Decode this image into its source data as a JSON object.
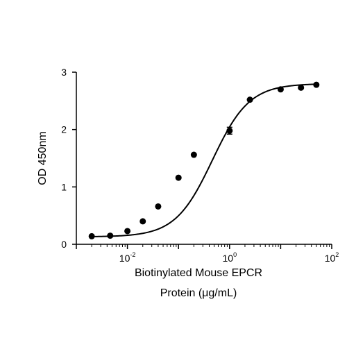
{
  "chart_data": {
    "type": "scatter",
    "xscale": "log",
    "xlim": [
      0.001,
      100
    ],
    "ylim": [
      0,
      3
    ],
    "xlabel_lines": [
      "Biotinylated Mouse EPCR",
      "Protein (μg/mL)"
    ],
    "ylabel": "OD 450nm",
    "x_ticks": [
      {
        "value": 0.01,
        "base": "10",
        "exp": "-2"
      },
      {
        "value": 1,
        "base": "10",
        "exp": "0"
      },
      {
        "value": 100,
        "base": "10",
        "exp": "2"
      }
    ],
    "y_ticks": [
      {
        "value": 0,
        "label": "0"
      },
      {
        "value": 1,
        "label": "1"
      },
      {
        "value": 2,
        "label": "2"
      },
      {
        "value": 3,
        "label": "3"
      }
    ],
    "grid": false,
    "marker_color": "#000000",
    "line_color": "#000000",
    "series": [
      {
        "points": [
          {
            "x": 0.002,
            "y": 0.14
          },
          {
            "x": 0.0046,
            "y": 0.15
          },
          {
            "x": 0.01,
            "y": 0.23
          },
          {
            "x": 0.02,
            "y": 0.4
          },
          {
            "x": 0.04,
            "y": 0.66
          },
          {
            "x": 0.1,
            "y": 1.16
          },
          {
            "x": 0.2,
            "y": 1.56
          },
          {
            "x": 1.0,
            "y": 1.98,
            "err": 0.06
          },
          {
            "x": 2.5,
            "y": 2.52
          },
          {
            "x": 10.0,
            "y": 2.7
          },
          {
            "x": 25.0,
            "y": 2.73
          },
          {
            "x": 50.0,
            "y": 2.78
          }
        ]
      }
    ],
    "fit": {
      "model": "4PL",
      "bottom": 0.13,
      "top": 2.8,
      "ec50": 0.46,
      "hill": 1.2
    }
  }
}
